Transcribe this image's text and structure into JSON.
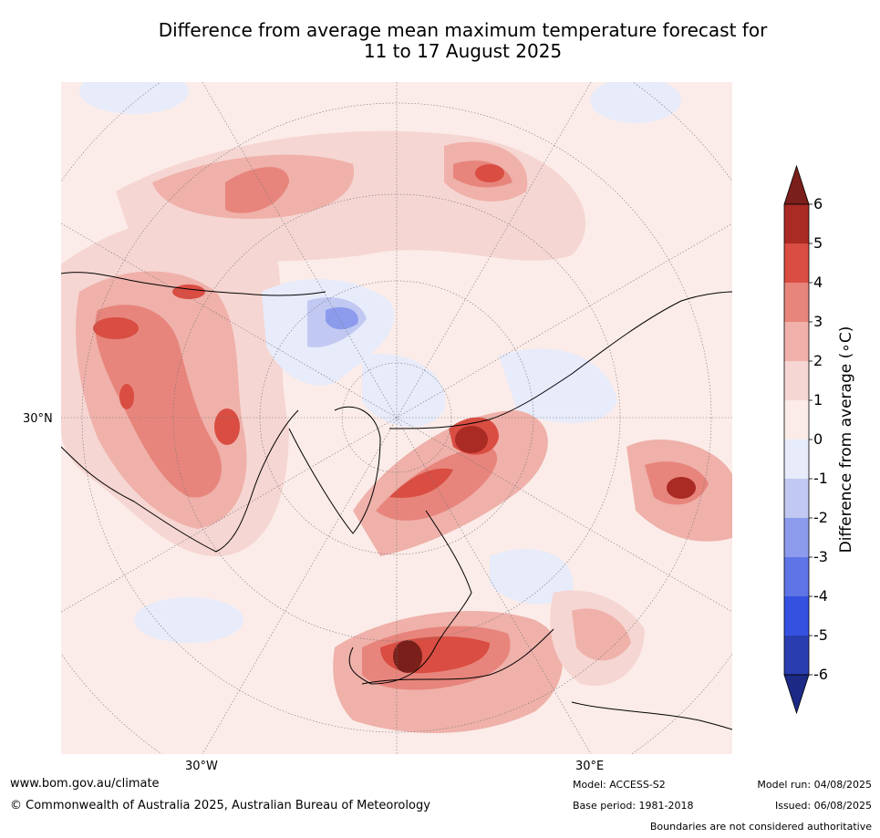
{
  "title": {
    "line1": "Difference from average mean maximum temperature forecast for",
    "line2": "11 to 17 August 2025"
  },
  "map": {
    "lat_label": "30°N",
    "lon_labels": {
      "west": "30°W",
      "east": "30°E"
    }
  },
  "colorbar": {
    "label": "Difference from average (∘C)",
    "ticks": [
      "6",
      "5",
      "4",
      "3",
      "2",
      "1",
      "0",
      "-1",
      "-2",
      "-3",
      "-4",
      "-5",
      "-6"
    ],
    "colors": {
      "over": "#7a1f1a",
      "5_6": "#aa2a24",
      "4_5": "#d94d42",
      "3_4": "#e7857c",
      "2_3": "#efb1aa",
      "1_2": "#f6d6d2",
      "0_1": "#fbece9",
      "m1_0": "#e7ebfa",
      "m2_m1": "#c1c9f2",
      "m3_m2": "#8c9bec",
      "m4_m3": "#5f74e6",
      "m5_m4": "#3551e0",
      "m6_m5": "#2a3db0",
      "under": "#1c2a86"
    }
  },
  "footer": {
    "website": "www.bom.gov.au/climate",
    "copyright": "© Commonwealth of Australia 2025, Australian Bureau of Meteorology",
    "model": "Model: ACCESS-S2",
    "base_period": "Base period: 1981-2018",
    "model_run": "Model run: 04/08/2025",
    "issued": "Issued: 06/08/2025",
    "disclaimer": "Boundaries are not considered authoritative"
  }
}
